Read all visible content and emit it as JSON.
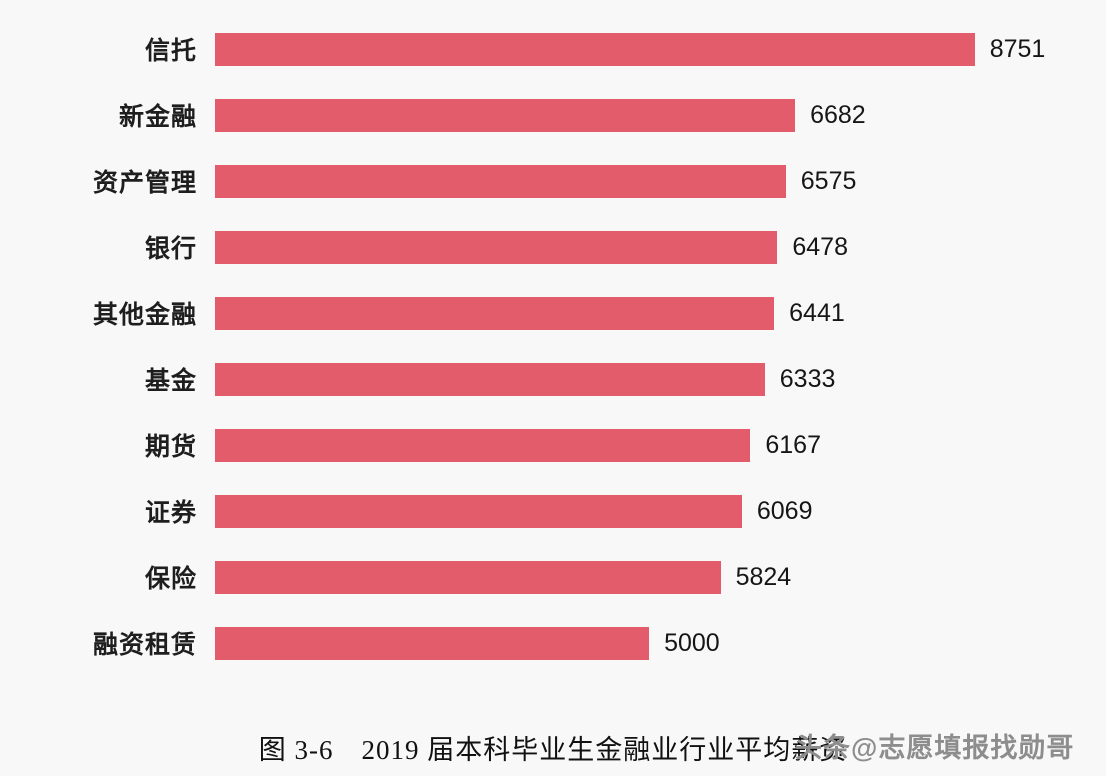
{
  "chart_data": {
    "type": "bar",
    "orientation": "horizontal",
    "title": "图 3-6　2019 届本科毕业生金融业行业平均薪资",
    "categories": [
      "信托",
      "新金融",
      "资产管理",
      "银行",
      "其他金融",
      "基金",
      "期货",
      "证券",
      "保险",
      "融资租赁"
    ],
    "values": [
      8751,
      6682,
      6575,
      6478,
      6441,
      6333,
      6167,
      6069,
      5824,
      5000
    ],
    "xlabel": "",
    "ylabel": "",
    "xlim": [
      0,
      9100
    ],
    "grid": false,
    "legend": false,
    "data_labels": true,
    "bar_color": "#e25c6c"
  },
  "caption": {
    "text": "图 3-6　2019 届本科毕业生金融业行业平均薪资"
  },
  "watermark": {
    "text": "头条@志愿填报找勋哥"
  },
  "colors": {
    "bar": "#e25c6c",
    "background": "#f8f8f9",
    "label_text": "#1e1e1e",
    "value_text": "#161616",
    "watermark_text": "#8d8d8d"
  }
}
